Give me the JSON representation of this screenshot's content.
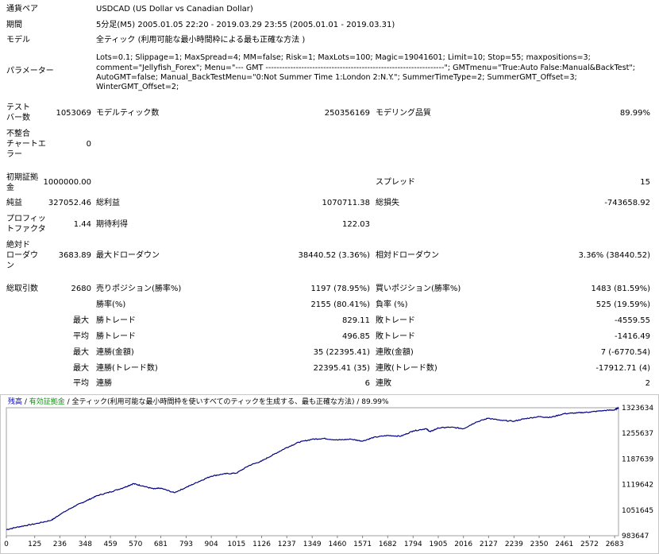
{
  "header": {
    "symbol_label": "通貨ペア",
    "symbol_value": "USDCAD (US Dollar vs Canadian Dollar)",
    "period_label": "期間",
    "period_value": "5分足(M5) 2005.01.05 22:20 - 2019.03.29 23:55 (2005.01.01 - 2019.03.31)",
    "model_label": "モデル",
    "model_value": "全ティック (利用可能な最小時間枠による最も正確な方法 )",
    "params_label": "パラメーター",
    "params_lines": [
      "Lots=0.1; Slippage=1; MaxSpread=4; MM=false; Risk=1; MaxLots=100; Magic=19041601; Limit=10; Stop=55; maxpositions=3;",
      "comment=\"Jellyfish_Forex\"; Menu=\"--- GMT -----------------------------------------------------------------\"; GMTmenu=\"True:Auto False:Manual&BackTest\";",
      "AutoGMT=false; Manual_BackTestMenu=\"0:Not Summer Time 1:London 2:N.Y.\"; SummerTimeType=2; SummerGMT_Offset=3;",
      "WinterGMT_Offset=2;"
    ]
  },
  "stats": {
    "bars_label": [
      "テスト",
      "バー数"
    ],
    "bars_value": "1053069",
    "ticks_label": "モデルティック数",
    "ticks_value": "250356169",
    "quality_label": "モデリング品質",
    "quality_value": "89.99%",
    "mismatch_label": [
      "不整合",
      "チャートエ",
      "ラー"
    ],
    "mismatch_value": "0",
    "deposit_label": [
      "初期証拠",
      "金"
    ],
    "deposit_value": "1000000.00",
    "spread_label": "スプレッド",
    "spread_value": "15",
    "net_label": "純益",
    "net_value": "327052.46",
    "gross_profit_label": "総利益",
    "gross_profit_value": "1070711.38",
    "gross_loss_label": "総損失",
    "gross_loss_value": "-743658.92",
    "pf_label": [
      "プロフィッ",
      "トファクタ"
    ],
    "pf_value": "1.44",
    "expected_label": "期待利得",
    "expected_value": "122.03",
    "abs_dd_label": [
      "絶対ド",
      "ローダウ",
      "ン"
    ],
    "abs_dd_value": "3683.89",
    "max_dd_label": "最大ドローダウン",
    "max_dd_value": "38440.52 (3.36%)",
    "rel_dd_label": "相対ドローダウン",
    "rel_dd_value": "3.36% (38440.52)",
    "total_trades_label": "総取引数",
    "total_trades_value": "2680",
    "short_label": "売りポジション(勝率%)",
    "short_value": "1197 (78.95%)",
    "long_label": "買いポジション(勝率%)",
    "long_value": "1483 (81.59%)",
    "win_label": "勝率(%)",
    "win_value": "2155 (80.41%)",
    "loss_label": "負率 (%)",
    "loss_value": "525 (19.59%)",
    "largest_prefix": "最大",
    "largest_win_label": "勝トレード",
    "largest_win_value": "829.11",
    "largest_loss_label": "敗トレード",
    "largest_loss_value": "-4559.55",
    "avg_prefix": "平均",
    "avg_win_label": "勝トレード",
    "avg_win_value": "496.85",
    "avg_loss_label": "敗トレード",
    "avg_loss_value": "-1416.49",
    "max_prefix_1": "最大",
    "max_consec_win_label": "連勝(金額)",
    "max_consec_win_value": "35 (22395.41)",
    "max_consec_loss_label": "連敗(金額)",
    "max_consec_loss_value": "7 (-6770.54)",
    "max_prefix_2": "最大",
    "max_consec_profit_label": "連勝(トレード数)",
    "max_consec_profit_value": "22395.41 (35)",
    "max_consec_lossamt_label": "連敗(トレード数)",
    "max_consec_lossamt_value": "-17912.71 (4)",
    "avg_prefix_2": "平均",
    "avg_consec_win_label": "連勝",
    "avg_consec_win_value": "6",
    "avg_consec_loss_label": "連敗",
    "avg_consec_loss_value": "2"
  },
  "chart_data": {
    "type": "line",
    "legend": [
      {
        "text": "残高",
        "color": "#0000c0"
      },
      {
        "text": " / ",
        "color": "#000000"
      },
      {
        "text": "有効証拠金",
        "color": "#00a000"
      },
      {
        "text": " / 全ティック(利用可能な最小時間枠を使いすべてのティックを生成する、最も正確な方法) / 89.99%",
        "color": "#000000"
      }
    ],
    "x_ticks": [
      "0",
      "125",
      "236",
      "348",
      "459",
      "570",
      "681",
      "793",
      "904",
      "1015",
      "1126",
      "1237",
      "1349",
      "1460",
      "1571",
      "1682",
      "1794",
      "1905",
      "2016",
      "2127",
      "2239",
      "2350",
      "2461",
      "2572",
      "2683"
    ],
    "y_ticks": [
      "1323634",
      "1255637",
      "1187639",
      "1119642",
      "1051645",
      "983647"
    ],
    "ylim": [
      983647,
      1323634
    ],
    "xlim": [
      0,
      2700
    ],
    "line_color": "#000080",
    "series": [
      {
        "x": [
          0,
          60,
          125,
          200,
          236,
          300,
          348,
          400,
          459,
          520,
          560,
          600,
          650,
          681,
          740,
          793,
          850,
          904,
          960,
          1015,
          1070,
          1126,
          1180,
          1237,
          1290,
          1349,
          1400,
          1460,
          1520,
          1571,
          1620,
          1682,
          1740,
          1794,
          1850,
          1870,
          1905,
          1960,
          2016,
          2070,
          2127,
          2180,
          2239,
          2290,
          2350,
          2400,
          2461,
          2520,
          2572,
          2630,
          2683,
          2700
        ],
        "y": [
          1000000,
          1008000,
          1015000,
          1025000,
          1040000,
          1062000,
          1075000,
          1090000,
          1100000,
          1112000,
          1122000,
          1116000,
          1108000,
          1110000,
          1098000,
          1112000,
          1128000,
          1142000,
          1148000,
          1150000,
          1170000,
          1182000,
          1200000,
          1218000,
          1232000,
          1240000,
          1242000,
          1238000,
          1240000,
          1235000,
          1245000,
          1250000,
          1248000,
          1262000,
          1268000,
          1260000,
          1270000,
          1272000,
          1268000,
          1285000,
          1296000,
          1290000,
          1288000,
          1295000,
          1300000,
          1298000,
          1308000,
          1310000,
          1312000,
          1316000,
          1318000,
          1324000
        ]
      }
    ]
  }
}
